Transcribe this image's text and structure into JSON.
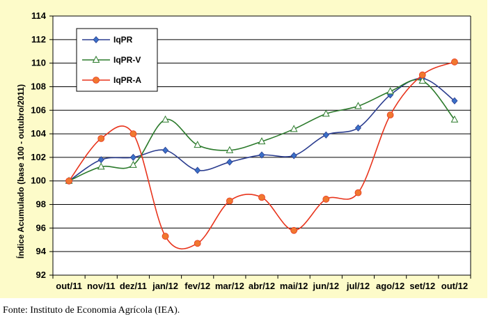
{
  "chart_data": {
    "type": "line",
    "title": "",
    "xlabel": "",
    "ylabel": "Índice Acumulado (base 100 - outubro/2011)",
    "categories": [
      "out/11",
      "nov/11",
      "dez/11",
      "jan/12",
      "fev/12",
      "mar/12",
      "abr/12",
      "mai/12",
      "jun/12",
      "jul/12",
      "ago/12",
      "set/12",
      "out/12"
    ],
    "yticks": [
      "114",
      "112",
      "110",
      "108",
      "106",
      "104",
      "102",
      "100",
      "98",
      "96",
      "94",
      "92"
    ],
    "ylim": [
      92,
      114
    ],
    "grid": true,
    "legend_position": "top-left",
    "series": [
      {
        "name": "IqPR",
        "color": "#2b3d8f",
        "marker": "diamond",
        "marker_color": "#3a70c8",
        "values": [
          100,
          101.8,
          102.0,
          102.6,
          100.9,
          101.6,
          102.2,
          102.15,
          103.9,
          104.5,
          107.3,
          108.7,
          106.8
        ]
      },
      {
        "name": "IqPR-V",
        "color": "#2b7a2b",
        "marker": "triangle",
        "marker_color": "#ffffff",
        "values": [
          100,
          101.2,
          101.35,
          105.2,
          103.05,
          102.6,
          103.35,
          104.4,
          105.7,
          106.35,
          107.6,
          108.5,
          105.2
        ]
      },
      {
        "name": "IqPR-A",
        "color": "#e8341c",
        "marker": "circle",
        "marker_color": "#f07830",
        "values": [
          100,
          103.6,
          104.0,
          95.3,
          94.7,
          98.3,
          98.6,
          95.8,
          98.45,
          99.0,
          105.6,
          109.0,
          110.1
        ]
      }
    ]
  },
  "colors": {
    "frame_background": "#fdfbc9",
    "plot_background": "#ffffff",
    "grid": "#000000"
  },
  "footer": {
    "source": "Fonte: Instituto de Economia Agrícola (IEA)."
  }
}
